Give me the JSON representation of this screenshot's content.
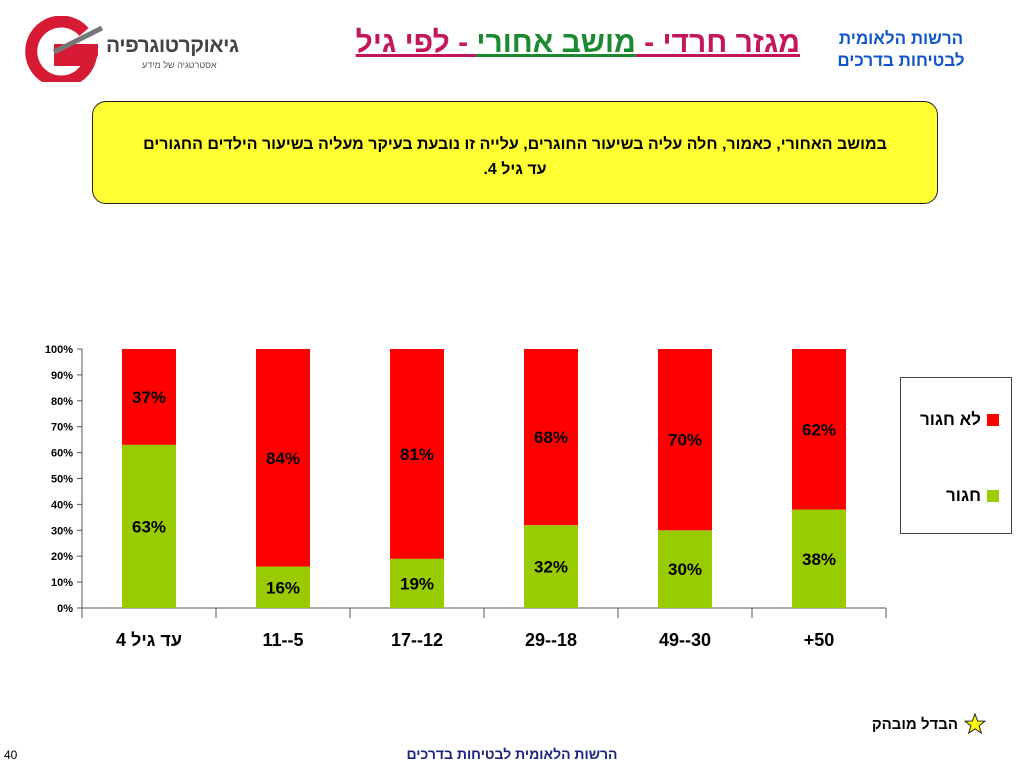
{
  "header": {
    "logo_brand": "גיאוקרטוגרפיה",
    "logo_tagline": "אסטרטגיה של מידע",
    "title_part1": "מגזר חרדי - ",
    "title_part2": "מושב אחורי",
    "title_part3": " - לפי גיל",
    "org_line1": "הרשות הלאומית",
    "org_line2": "לבטיחות בדרכים"
  },
  "note": "במושב האחורי, כאמור, חלה עליה בשיעור החוגרים, עלייה זו נובעת בעיקר מעליה בשיעור הילדים החגורים עד גיל 4.",
  "footnote": "הבדל מובהק",
  "footer": "הרשות הלאומית לבטיחות בדרכים",
  "page_number": "40",
  "colors": {
    "belted": "#99cc00",
    "unbelted": "#ff0000",
    "star": "#ffff00"
  },
  "chart_data": {
    "type": "bar",
    "stacked": true,
    "categories": [
      "עד גיל 4",
      "5--11",
      "12--17",
      "18--29",
      "30--49",
      "50+"
    ],
    "series": [
      {
        "name": "חגור",
        "values": [
          63,
          16,
          19,
          32,
          30,
          38
        ],
        "labels": [
          "63%",
          "16%",
          "19%",
          "32%",
          "30%",
          "38%"
        ]
      },
      {
        "name": "לא חגור",
        "values": [
          37,
          84,
          81,
          68,
          70,
          62
        ],
        "labels": [
          "37%",
          "84%",
          "81%",
          "68%",
          "70%",
          "62%"
        ]
      }
    ],
    "y_ticks": [
      "0%",
      "10%",
      "20%",
      "30%",
      "40%",
      "50%",
      "60%",
      "70%",
      "80%",
      "90%",
      "100%"
    ],
    "ylim": [
      0,
      100
    ],
    "legend_position": "right",
    "grid": false
  }
}
